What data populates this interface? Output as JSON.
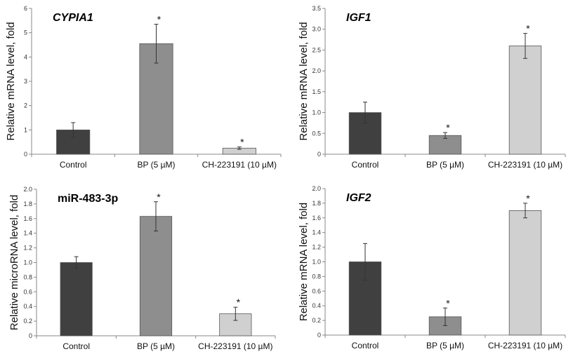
{
  "chart_data": [
    {
      "type": "bar",
      "title": "CYPIA1",
      "title_italic": true,
      "ylabel": "Relative mRNA level, fold",
      "categories": [
        "Control",
        "BP (5 µM)",
        "CH-223191 (10 µM)"
      ],
      "values": [
        1.0,
        4.55,
        0.25
      ],
      "errors": [
        0.3,
        0.8,
        0.05
      ],
      "significance": [
        "",
        "*",
        "*"
      ],
      "colors": [
        "#404040",
        "#8e8e8e",
        "#d0d0d0"
      ],
      "ylim": [
        0,
        6
      ],
      "yticks": [
        "0",
        "1",
        "2",
        "3",
        "4",
        "5",
        "6"
      ],
      "grid": false
    },
    {
      "type": "bar",
      "title": "IGF1",
      "title_italic": true,
      "ylabel": "Relative mRNA level, fold",
      "categories": [
        "Control",
        "BP (5 µM)",
        "CH-223191 (10 µM)"
      ],
      "values": [
        1.0,
        0.45,
        2.6
      ],
      "errors": [
        0.25,
        0.07,
        0.3
      ],
      "significance": [
        "",
        "*",
        "*"
      ],
      "colors": [
        "#404040",
        "#8e8e8e",
        "#d0d0d0"
      ],
      "ylim": [
        0,
        3.5
      ],
      "yticks": [
        "0",
        "0.5",
        "1.0",
        "1.5",
        "2.0",
        "2.5",
        "3.0",
        "3.5"
      ],
      "grid": false
    },
    {
      "type": "bar",
      "title": "miR-483-3p",
      "title_italic": false,
      "ylabel": "Relative microRNA level, fold",
      "categories": [
        "Control",
        "BP (5 µM)",
        "CH-223191 (10 µM)"
      ],
      "values": [
        1.0,
        1.63,
        0.3
      ],
      "errors": [
        0.08,
        0.2,
        0.09
      ],
      "significance": [
        "",
        "*",
        "*"
      ],
      "colors": [
        "#404040",
        "#8e8e8e",
        "#d0d0d0"
      ],
      "ylim": [
        0,
        2.0
      ],
      "yticks": [
        "0",
        "0.2",
        "0.4",
        "0.6",
        "0.8",
        "1.0",
        "1.2",
        "1.4",
        "1.6",
        "1.8",
        "2.0"
      ],
      "grid": false
    },
    {
      "type": "bar",
      "title": "IGF2",
      "title_italic": true,
      "ylabel": "Relative mRNA level, fold",
      "categories": [
        "Control",
        "BP (5 µM)",
        "CH-223191 (10 µM)"
      ],
      "values": [
        1.0,
        0.25,
        1.7
      ],
      "errors": [
        0.25,
        0.12,
        0.1
      ],
      "significance": [
        "",
        "*",
        "*"
      ],
      "colors": [
        "#404040",
        "#8e8e8e",
        "#d0d0d0"
      ],
      "ylim": [
        0,
        2.0
      ],
      "yticks": [
        "0",
        "0.2",
        "0.4",
        "0.6",
        "0.8",
        "1.0",
        "1.2",
        "1.4",
        "1.6",
        "1.8",
        "2.0"
      ],
      "grid": false
    }
  ]
}
